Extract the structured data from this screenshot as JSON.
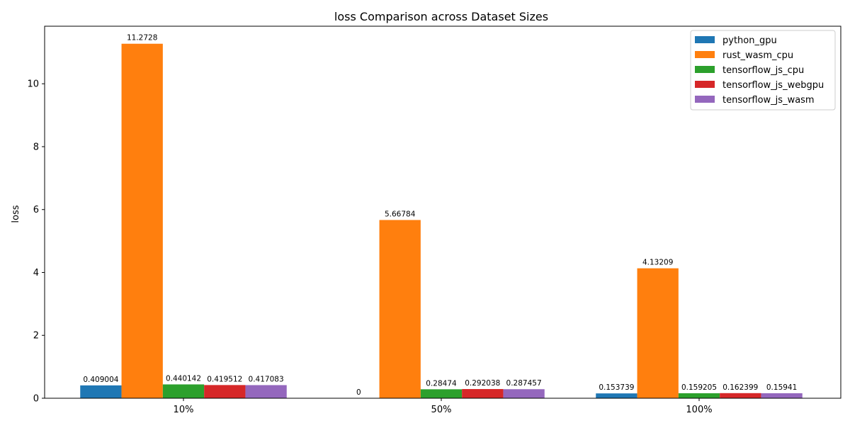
{
  "chart_data": {
    "type": "bar",
    "title": "loss Comparison across Dataset Sizes",
    "xlabel": "",
    "ylabel": "loss",
    "categories": [
      "10%",
      "50%",
      "100%"
    ],
    "ylim": [
      0,
      11.83
    ],
    "yticks": [
      0,
      2,
      4,
      6,
      8,
      10
    ],
    "grid": false,
    "legend_position": "top-right",
    "series": [
      {
        "name": "python_gpu",
        "color": "#1f77b4",
        "values": [
          0.409004,
          0,
          0.153739
        ],
        "labels": [
          "0.409004",
          "0",
          "0.153739"
        ]
      },
      {
        "name": "rust_wasm_cpu",
        "color": "#ff7f0e",
        "values": [
          11.2728,
          5.66784,
          4.13209
        ],
        "labels": [
          "11.2728",
          "5.66784",
          "4.13209"
        ]
      },
      {
        "name": "tensorflow_js_cpu",
        "color": "#2ca02c",
        "values": [
          0.440142,
          0.28474,
          0.159205
        ],
        "labels": [
          "0.440142",
          "0.28474",
          "0.159205"
        ]
      },
      {
        "name": "tensorflow_js_webgpu",
        "color": "#d62728",
        "values": [
          0.419512,
          0.292038,
          0.162399
        ],
        "labels": [
          "0.419512",
          "0.292038",
          "0.162399"
        ]
      },
      {
        "name": "tensorflow_js_wasm",
        "color": "#9467bd",
        "values": [
          0.417083,
          0.287457,
          0.15941
        ],
        "labels": [
          "0.417083",
          "0.287457",
          "0.15941"
        ]
      }
    ]
  }
}
